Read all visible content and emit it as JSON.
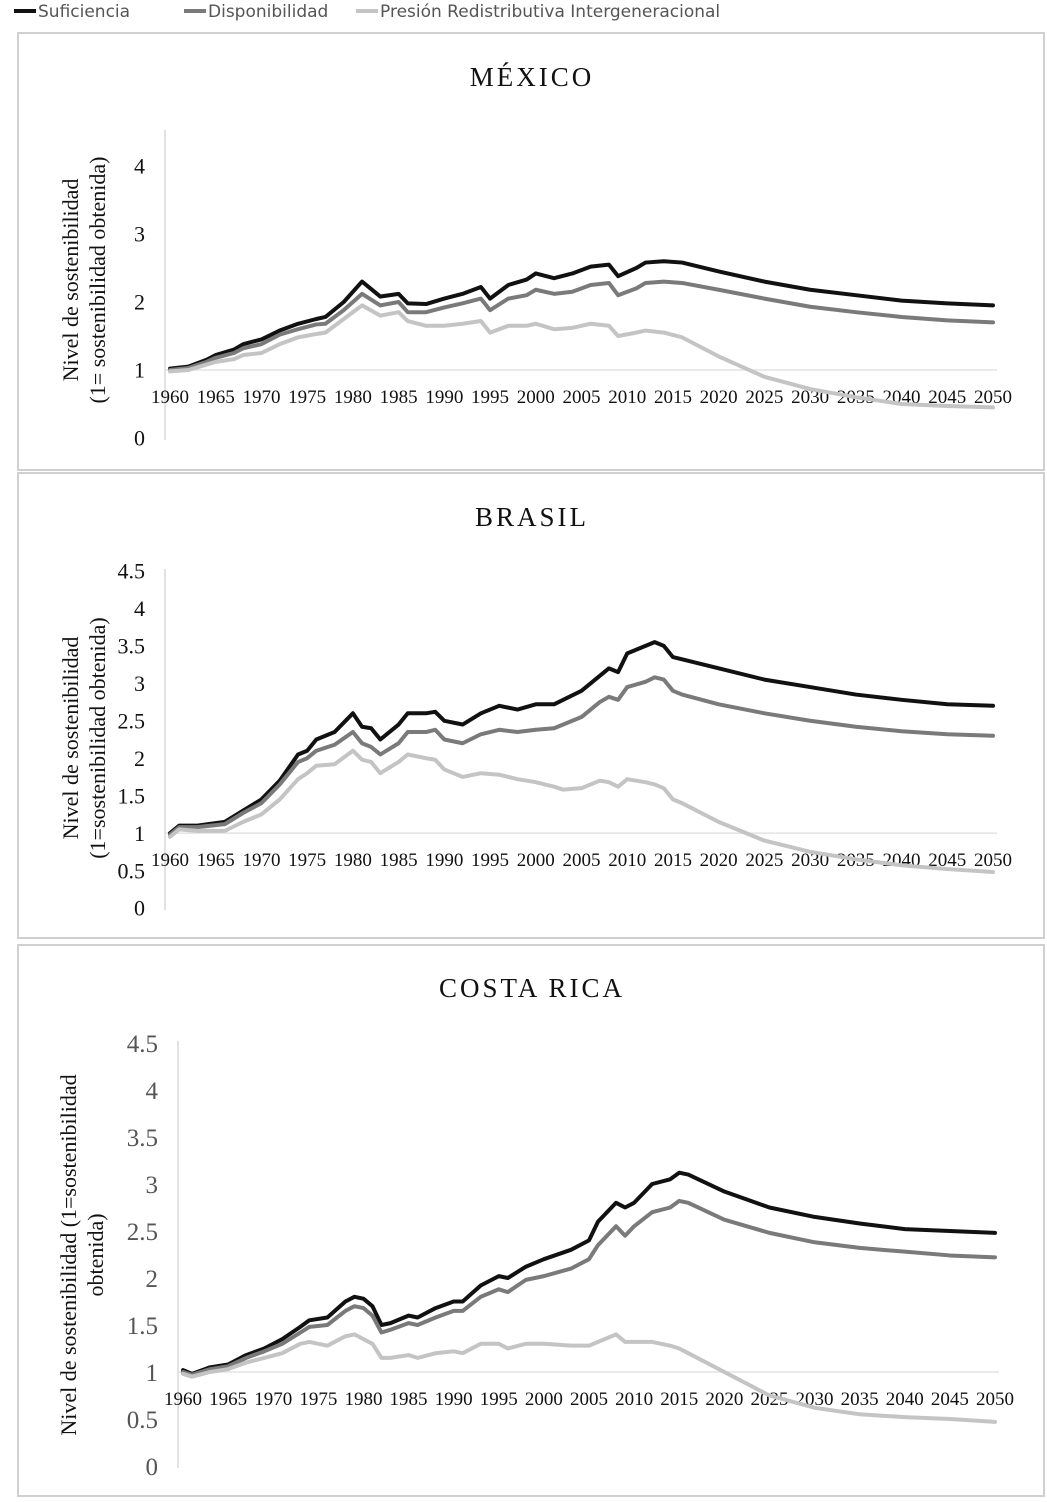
{
  "legend": [
    {
      "name": "Suficiencia",
      "color": "#111111"
    },
    {
      "name": "Disponibilidad",
      "color": "#7a7a7a"
    },
    {
      "name": "Presión Redistributiva Intergeneracional",
      "color": "#c4c4c4"
    }
  ],
  "chart_data": [
    {
      "type": "line",
      "title": "MÉXICO",
      "ylabel": [
        "Nivel de sostenibilidad",
        "(1= sostenibilidad obtenida)"
      ],
      "xlim": [
        1960,
        2050
      ],
      "xticks": [
        1960,
        1965,
        1970,
        1975,
        1980,
        1985,
        1990,
        1995,
        2000,
        2005,
        2010,
        2015,
        2020,
        2025,
        2030,
        2035,
        2040,
        2045,
        2050
      ],
      "ylim": [
        0,
        4.5
      ],
      "yticks": [
        0,
        1,
        2,
        3,
        4
      ],
      "xaxis_crosses": 1,
      "x": [
        1960,
        1962,
        1964,
        1965,
        1967,
        1968,
        1970,
        1972,
        1974,
        1976,
        1977,
        1979,
        1981,
        1983,
        1985,
        1986,
        1988,
        1990,
        1992,
        1994,
        1995,
        1997,
        1999,
        2000,
        2002,
        2004,
        2006,
        2008,
        2009,
        2011,
        2012,
        2014,
        2016,
        2020,
        2025,
        2030,
        2035,
        2040,
        2045,
        2050
      ],
      "series": [
        {
          "values": [
            1.02,
            1.05,
            1.15,
            1.22,
            1.3,
            1.38,
            1.45,
            1.58,
            1.68,
            1.75,
            1.78,
            2.0,
            2.3,
            2.08,
            2.12,
            1.98,
            1.97,
            2.05,
            2.12,
            2.22,
            2.05,
            2.25,
            2.33,
            2.42,
            2.35,
            2.42,
            2.52,
            2.55,
            2.38,
            2.5,
            2.58,
            2.6,
            2.58,
            2.45,
            2.3,
            2.18,
            2.1,
            2.02,
            1.98,
            1.95
          ]
        },
        {
          "values": [
            1.0,
            1.03,
            1.12,
            1.18,
            1.25,
            1.32,
            1.38,
            1.52,
            1.6,
            1.67,
            1.68,
            1.88,
            2.12,
            1.95,
            2.0,
            1.85,
            1.85,
            1.92,
            1.98,
            2.05,
            1.88,
            2.05,
            2.1,
            2.18,
            2.12,
            2.15,
            2.25,
            2.28,
            2.1,
            2.2,
            2.28,
            2.3,
            2.28,
            2.18,
            2.05,
            1.93,
            1.85,
            1.78,
            1.73,
            1.7
          ]
        },
        {
          "values": [
            0.98,
            1.0,
            1.08,
            1.12,
            1.16,
            1.22,
            1.25,
            1.38,
            1.48,
            1.53,
            1.55,
            1.75,
            1.95,
            1.8,
            1.85,
            1.72,
            1.65,
            1.65,
            1.68,
            1.72,
            1.55,
            1.65,
            1.65,
            1.68,
            1.6,
            1.62,
            1.68,
            1.65,
            1.5,
            1.55,
            1.58,
            1.55,
            1.48,
            1.2,
            0.9,
            0.72,
            0.6,
            0.5,
            0.47,
            0.45
          ]
        }
      ]
    },
    {
      "type": "line",
      "title": "BRASIL",
      "ylabel": [
        "Nivel de sostenibilidad",
        "(1=sostenibilidad obtenida)"
      ],
      "xlim": [
        1960,
        2050
      ],
      "xticks": [
        1960,
        1965,
        1970,
        1975,
        1980,
        1985,
        1990,
        1995,
        2000,
        2005,
        2010,
        2015,
        2020,
        2025,
        2030,
        2035,
        2040,
        2045,
        2050
      ],
      "ylim": [
        0,
        4.5
      ],
      "yticks": [
        0,
        0.5,
        1,
        1.5,
        2,
        2.5,
        3,
        3.5,
        4,
        4.5
      ],
      "xaxis_crosses": 1,
      "x": [
        1960,
        1961,
        1963,
        1966,
        1968,
        1970,
        1972,
        1974,
        1975,
        1976,
        1978,
        1980,
        1981,
        1982,
        1983,
        1985,
        1986,
        1988,
        1989,
        1990,
        1992,
        1994,
        1996,
        1998,
        2000,
        2002,
        2003,
        2005,
        2007,
        2008,
        2009,
        2010,
        2012,
        2013,
        2014,
        2015,
        2016,
        2020,
        2025,
        2030,
        2035,
        2040,
        2045,
        2050
      ],
      "series": [
        {
          "values": [
            1.0,
            1.1,
            1.1,
            1.15,
            1.3,
            1.45,
            1.7,
            2.05,
            2.1,
            2.25,
            2.35,
            2.6,
            2.42,
            2.4,
            2.25,
            2.45,
            2.6,
            2.6,
            2.62,
            2.5,
            2.45,
            2.6,
            2.7,
            2.65,
            2.72,
            2.72,
            2.78,
            2.9,
            3.1,
            3.2,
            3.15,
            3.4,
            3.5,
            3.55,
            3.5,
            3.35,
            3.32,
            3.2,
            3.05,
            2.95,
            2.85,
            2.78,
            2.72,
            2.7
          ]
        },
        {
          "values": [
            0.98,
            1.08,
            1.08,
            1.12,
            1.27,
            1.4,
            1.65,
            1.95,
            2.0,
            2.1,
            2.18,
            2.35,
            2.2,
            2.15,
            2.05,
            2.2,
            2.35,
            2.35,
            2.38,
            2.25,
            2.2,
            2.32,
            2.38,
            2.35,
            2.38,
            2.4,
            2.45,
            2.55,
            2.75,
            2.82,
            2.78,
            2.95,
            3.02,
            3.08,
            3.05,
            2.9,
            2.85,
            2.72,
            2.6,
            2.5,
            2.42,
            2.36,
            2.32,
            2.3
          ]
        },
        {
          "values": [
            0.95,
            1.05,
            1.03,
            1.03,
            1.15,
            1.25,
            1.45,
            1.72,
            1.8,
            1.9,
            1.92,
            2.1,
            1.98,
            1.95,
            1.8,
            1.95,
            2.05,
            2.0,
            1.98,
            1.85,
            1.75,
            1.8,
            1.78,
            1.72,
            1.68,
            1.62,
            1.58,
            1.6,
            1.7,
            1.68,
            1.62,
            1.72,
            1.68,
            1.65,
            1.6,
            1.45,
            1.4,
            1.15,
            0.9,
            0.75,
            0.65,
            0.57,
            0.52,
            0.48
          ]
        }
      ]
    },
    {
      "type": "line",
      "title": "COSTA RICA",
      "ylabel": [
        "Nivel de sostenibilidad (1=sostenibilidad",
        "obtenida)"
      ],
      "xlim": [
        1960,
        2050
      ],
      "xticks": [
        1960,
        1965,
        1970,
        1975,
        1980,
        1985,
        1990,
        1995,
        2000,
        2005,
        2010,
        2015,
        2020,
        2025,
        2030,
        2035,
        2040,
        2045,
        2050
      ],
      "ylim": [
        0,
        4.5
      ],
      "yticks": [
        0,
        0.5,
        1,
        1.5,
        2,
        2.5,
        3,
        3.5,
        4,
        4.5
      ],
      "xaxis_crosses": 1,
      "x": [
        1960,
        1961,
        1963,
        1965,
        1967,
        1969,
        1971,
        1973,
        1974,
        1976,
        1978,
        1979,
        1980,
        1981,
        1982,
        1983,
        1985,
        1986,
        1988,
        1990,
        1991,
        1993,
        1995,
        1996,
        1998,
        2000,
        2003,
        2005,
        2006,
        2008,
        2009,
        2010,
        2012,
        2014,
        2015,
        2016,
        2020,
        2025,
        2030,
        2035,
        2040,
        2045,
        2050
      ],
      "series": [
        {
          "values": [
            1.02,
            0.98,
            1.05,
            1.08,
            1.18,
            1.25,
            1.35,
            1.48,
            1.55,
            1.58,
            1.75,
            1.8,
            1.78,
            1.7,
            1.5,
            1.52,
            1.6,
            1.58,
            1.68,
            1.75,
            1.75,
            1.92,
            2.02,
            2.0,
            2.12,
            2.2,
            2.3,
            2.4,
            2.6,
            2.8,
            2.75,
            2.8,
            3.0,
            3.05,
            3.12,
            3.1,
            2.92,
            2.75,
            2.65,
            2.58,
            2.52,
            2.5,
            2.48
          ]
        },
        {
          "values": [
            1.0,
            0.97,
            1.03,
            1.06,
            1.15,
            1.22,
            1.3,
            1.42,
            1.48,
            1.5,
            1.65,
            1.7,
            1.68,
            1.6,
            1.42,
            1.45,
            1.52,
            1.5,
            1.58,
            1.65,
            1.65,
            1.8,
            1.88,
            1.85,
            1.98,
            2.02,
            2.1,
            2.2,
            2.35,
            2.55,
            2.45,
            2.55,
            2.7,
            2.75,
            2.82,
            2.8,
            2.62,
            2.48,
            2.38,
            2.32,
            2.28,
            2.24,
            2.22
          ]
        },
        {
          "values": [
            0.98,
            0.95,
            1.0,
            1.03,
            1.1,
            1.15,
            1.2,
            1.3,
            1.32,
            1.28,
            1.38,
            1.4,
            1.35,
            1.3,
            1.15,
            1.15,
            1.18,
            1.15,
            1.2,
            1.22,
            1.2,
            1.3,
            1.3,
            1.25,
            1.3,
            1.3,
            1.28,
            1.28,
            1.32,
            1.4,
            1.32,
            1.32,
            1.32,
            1.28,
            1.25,
            1.2,
            1.0,
            0.75,
            0.62,
            0.55,
            0.52,
            0.5,
            0.47
          ]
        }
      ]
    }
  ]
}
